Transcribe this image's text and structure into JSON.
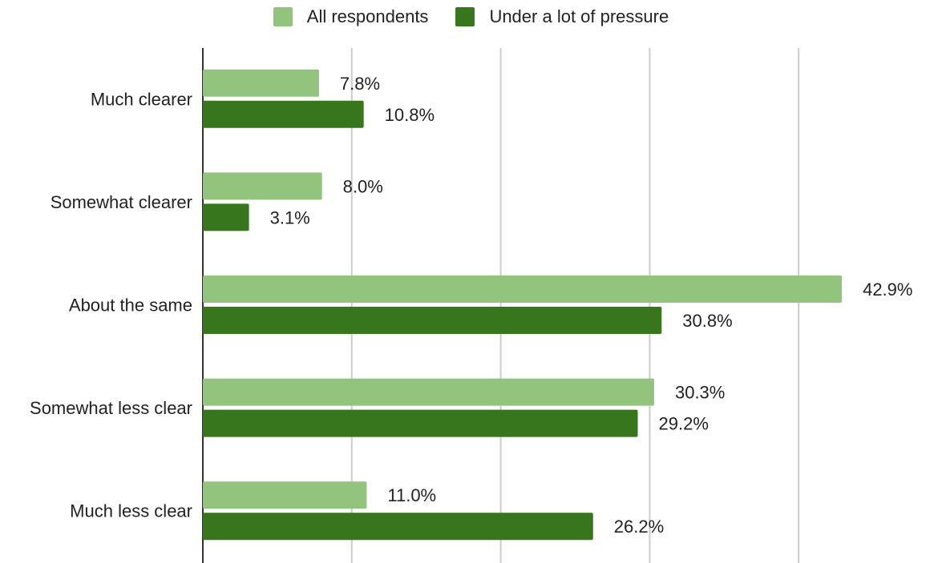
{
  "chart_data": {
    "type": "bar",
    "orientation": "horizontal",
    "categories": [
      "Much clearer",
      "Somewhat clearer",
      "About the same",
      "Somewhat less clear",
      "Much less clear"
    ],
    "series": [
      {
        "name": "All respondents",
        "color": "#93c47d",
        "values": [
          7.8,
          8.0,
          42.9,
          30.3,
          11.0
        ],
        "labels": [
          "7.8%",
          "8.0%",
          "42.9%",
          "30.3%",
          "11.0%"
        ]
      },
      {
        "name": "Under a lot of pressure",
        "color": "#38761d",
        "values": [
          10.8,
          3.1,
          30.8,
          29.2,
          26.2
        ],
        "labels": [
          "10.8%",
          "3.1%",
          "30.8%",
          "29.2%",
          "26.2%"
        ]
      }
    ],
    "xlim": [
      0,
      50
    ],
    "x_grid_step": 10,
    "grid": true,
    "legend": "top-center",
    "title": "",
    "xlabel": "",
    "ylabel": ""
  }
}
